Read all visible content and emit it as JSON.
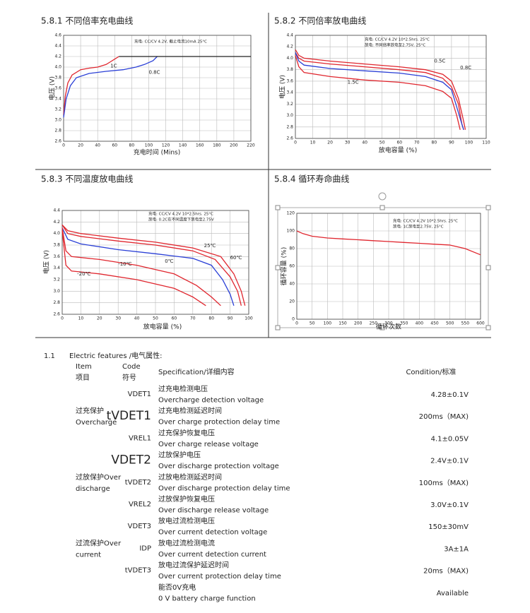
{
  "charts": [
    {
      "type": "line",
      "title": "5.8.1 不同倍率充电曲线",
      "xlabel": "充电时间 (Mins)",
      "ylabel": "电压 (V)",
      "notes": [
        "充电: CC/CV 4.2V, 截止电流10mA 25°C"
      ],
      "xlim": [
        0,
        220
      ],
      "xticks": [
        0,
        20,
        40,
        60,
        80,
        100,
        120,
        140,
        160,
        180,
        200,
        220
      ],
      "ylim": [
        2.6,
        4.6
      ],
      "yticks": [
        2.6,
        2.8,
        {
          "value": 3,
          "label": "3.0"
        },
        3.2,
        3.4,
        3.6,
        3.8,
        {
          "value": 4,
          "label": "4.0"
        },
        4.2,
        4.4,
        4.6
      ],
      "series": [
        {
          "label": "1C",
          "color": "#e0262e",
          "x": [
            0,
            2,
            5,
            10,
            20,
            30,
            40,
            50,
            55,
            60,
            65
          ],
          "values": [
            3.1,
            3.45,
            3.7,
            3.85,
            3.95,
            3.98,
            4.0,
            4.05,
            4.1,
            4.15,
            4.2
          ]
        },
        {
          "label": "0.8C",
          "color": "#2a3fd6",
          "x": [
            0,
            3,
            8,
            15,
            30,
            50,
            70,
            85,
            95,
            105,
            110
          ],
          "values": [
            3.05,
            3.4,
            3.65,
            3.8,
            3.88,
            3.92,
            3.95,
            4.0,
            4.05,
            4.12,
            4.2
          ]
        },
        {
          "color": "#222222",
          "x": [
            65,
            220
          ],
          "values": [
            4.2,
            4.2
          ]
        }
      ]
    },
    {
      "type": "line",
      "title": "5.8.2 不同倍率放电曲线",
      "xlabel": "放电容量 (%)",
      "ylabel": "电压 (V)",
      "notes": [
        "充电: CC/CV 4.2V 10*2.5hrs. 25°C",
        "放电: 不同倍率放电至2.75V, 25°C"
      ],
      "xlim": [
        0,
        110
      ],
      "xticks": [
        0,
        10,
        20,
        30,
        40,
        50,
        60,
        70,
        80,
        90,
        100,
        110
      ],
      "ylim": [
        2.6,
        4.4
      ],
      "yticks": [
        2.6,
        2.8,
        {
          "value": 3,
          "label": "3.0"
        },
        3.2,
        3.4,
        3.6,
        3.8,
        {
          "value": 4,
          "label": "4.0"
        },
        4.2,
        4.4
      ],
      "series": [
        {
          "label": "0.5C",
          "color": "#e0262e",
          "x": [
            0,
            2,
            5,
            20,
            40,
            60,
            75,
            85,
            90,
            94,
            97,
            98
          ],
          "values": [
            4.15,
            4.05,
            4.0,
            3.95,
            3.9,
            3.85,
            3.8,
            3.72,
            3.6,
            3.3,
            2.9,
            2.75
          ]
        },
        {
          "label": "0.8C",
          "color": "#e0262e",
          "x": [
            0,
            2,
            5,
            20,
            40,
            60,
            75,
            85,
            90,
            94,
            96,
            97
          ],
          "values": [
            4.1,
            4.0,
            3.95,
            3.9,
            3.85,
            3.8,
            3.75,
            3.65,
            3.5,
            3.2,
            2.85,
            2.75
          ]
        },
        {
          "color": "#2a3fd6",
          "x": [
            0,
            2,
            5,
            20,
            40,
            60,
            75,
            85,
            90,
            93,
            96,
            97
          ],
          "values": [
            4.1,
            3.95,
            3.88,
            3.82,
            3.78,
            3.74,
            3.68,
            3.58,
            3.45,
            3.15,
            2.85,
            2.75
          ]
        },
        {
          "label": "1.5C",
          "color": "#e0262e",
          "x": [
            0,
            2,
            5,
            20,
            40,
            60,
            75,
            85,
            90,
            93,
            95
          ],
          "values": [
            4.05,
            3.85,
            3.75,
            3.68,
            3.62,
            3.58,
            3.52,
            3.42,
            3.3,
            3.0,
            2.75
          ]
        }
      ]
    },
    {
      "type": "line",
      "title": "5.8.3 不同温度放电曲线",
      "xlabel": "放电容量 (%)",
      "ylabel": "电压 (V)",
      "notes": [
        "充电: CC/CV 4.2V 10*2.5hrs. 25°C",
        "放电: 0.2C在不同温度下放电至2.75V"
      ],
      "xlim": [
        0,
        100
      ],
      "xticks": [
        0,
        10,
        20,
        30,
        40,
        50,
        60,
        70,
        80,
        90,
        100
      ],
      "ylim": [
        2.6,
        4.4
      ],
      "yticks": [
        2.6,
        2.8,
        {
          "value": 3,
          "label": "3.0"
        },
        3.2,
        3.4,
        3.6,
        3.8,
        {
          "value": 4,
          "label": "4.0"
        },
        4.2,
        4.4
      ],
      "series": [
        {
          "label": "60℃",
          "color": "#e0262e",
          "x": [
            0,
            3,
            10,
            30,
            50,
            70,
            85,
            92,
            96,
            98
          ],
          "values": [
            4.15,
            4.05,
            4.0,
            3.92,
            3.85,
            3.75,
            3.6,
            3.3,
            3.0,
            2.75
          ]
        },
        {
          "label": "25℃",
          "color": "#e0262e",
          "x": [
            0,
            3,
            10,
            30,
            50,
            70,
            82,
            90,
            94,
            96
          ],
          "values": [
            4.15,
            4.0,
            3.95,
            3.87,
            3.8,
            3.7,
            3.55,
            3.25,
            3.0,
            2.75
          ]
        },
        {
          "label": "0℃",
          "color": "#2a3fd6",
          "x": [
            0,
            3,
            10,
            30,
            50,
            70,
            80,
            86,
            90,
            92
          ],
          "values": [
            4.1,
            3.9,
            3.82,
            3.72,
            3.65,
            3.57,
            3.45,
            3.2,
            2.95,
            2.75
          ]
        },
        {
          "label": "-10℃",
          "color": "#e0262e",
          "x": [
            0,
            2,
            5,
            20,
            40,
            60,
            72,
            80,
            85
          ],
          "values": [
            4.1,
            3.7,
            3.6,
            3.55,
            3.45,
            3.3,
            3.1,
            2.9,
            2.75
          ]
        },
        {
          "label": "-20℃",
          "color": "#e0262e",
          "x": [
            0,
            2,
            5,
            20,
            40,
            60,
            70,
            77
          ],
          "values": [
            4.05,
            3.45,
            3.35,
            3.3,
            3.2,
            3.05,
            2.9,
            2.75
          ]
        }
      ]
    },
    {
      "type": "line",
      "title": "5.8.4 循环寿命曲线",
      "xlabel": "循环次数",
      "ylabel": "循环容量 (%)",
      "notes": [
        "充电: CC/CV 4.2V 10*2.5hrs. 25°C",
        "放电: 1C放电至2.75V, 25°C"
      ],
      "xlim": [
        0,
        600
      ],
      "xticks": [
        0,
        50,
        100,
        150,
        200,
        250,
        300,
        350,
        400,
        450,
        500,
        550,
        600
      ],
      "ylim": [
        0,
        120
      ],
      "yticks": [
        0,
        20,
        40,
        60,
        80,
        100,
        120
      ],
      "series": [
        {
          "color": "#e0262e",
          "x": [
            0,
            20,
            50,
            100,
            150,
            200,
            250,
            300,
            350,
            400,
            450,
            500,
            550,
            600
          ],
          "values": [
            100,
            97,
            94,
            92,
            91,
            90,
            89,
            88,
            87,
            86,
            85,
            84,
            80,
            73
          ]
        }
      ]
    }
  ],
  "section": {
    "number": "1.1",
    "title": "Electric features /电气属性:"
  },
  "table": {
    "header": {
      "item": [
        "Item",
        "项目"
      ],
      "code": [
        "Code",
        "符号"
      ],
      "spec": "Specification/详细内容",
      "condition": "Condition/标准"
    },
    "groups": [
      {
        "label": [
          "过充保护",
          "Overcharge"
        ],
        "rows": [
          0,
          1,
          2
        ]
      },
      {
        "label": [
          "过放保护Over",
          "discharge"
        ],
        "rows": [
          3,
          4,
          5
        ]
      },
      {
        "label": [
          "过流保护Over",
          "current"
        ],
        "rows": [
          6,
          7,
          8
        ]
      }
    ],
    "rows": [
      {
        "code": "VDET1",
        "zh": "过充电检测电压",
        "en": "Overcharge detection voltage",
        "condition": "4.28±0.1V"
      },
      {
        "code": "tVDET1",
        "zh": "过充电检测延迟时间",
        "en": "Over charge protection delay time",
        "condition": "200ms（MAX)"
      },
      {
        "code": "VREL1",
        "zh": "过充保护恢复电压",
        "en": "Over charge release voltage",
        "condition": "4.1±0.05V"
      },
      {
        "code": "VDET2",
        "zh": "过放保护电压",
        "en": "Over discharge protection voltage",
        "condition": "2.4V±0.1V"
      },
      {
        "code": "tVDET2",
        "zh": "过放电检测延迟时间",
        "en": "Over discharge protection delay time",
        "condition": "100ms（MAX)"
      },
      {
        "code": "VREL2",
        "zh": "过放保护恢复电压",
        "en": "Over discharge release voltage",
        "condition": "3.0V±0.1V"
      },
      {
        "code": "VDET3",
        "zh": "放电过流检测电压",
        "en": "Over current detection voltage",
        "condition": "150±30mV"
      },
      {
        "code": "IDP",
        "zh": "放电过流检测电流",
        "en": "Over current detection current",
        "condition": "3A±1A"
      },
      {
        "code": "tVDET3",
        "zh": "放电过流保护延迟时间",
        "en": "Over current protection delay time",
        "condition": "20ms（MAX)"
      },
      {
        "zh": "能否0V充电",
        "en": "0 V battery charge function",
        "condition": "Available"
      }
    ]
  }
}
